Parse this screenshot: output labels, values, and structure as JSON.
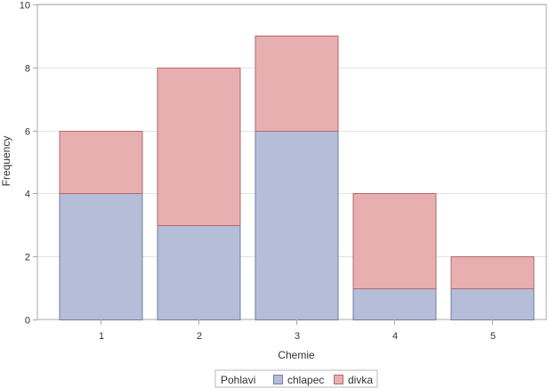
{
  "chart_data": {
    "type": "bar",
    "stacked": true,
    "categories": [
      "1",
      "2",
      "3",
      "4",
      "5"
    ],
    "series": [
      {
        "name": "chlapec",
        "values": [
          4,
          3,
          6,
          1,
          1
        ],
        "color": "#b5bdd8"
      },
      {
        "name": "divka",
        "values": [
          2,
          5,
          3,
          3,
          1
        ],
        "color": "#e8afb0"
      }
    ],
    "xlabel": "Chemie",
    "ylabel": "Frequency",
    "ylim": [
      0,
      10
    ],
    "yticks": [
      0,
      2,
      4,
      6,
      8,
      10
    ],
    "grid": true,
    "legend": {
      "title": "Pohlavi",
      "placement": "bottom-center"
    },
    "colors": {
      "bar_outline_chlapec": "#6f7fa6",
      "bar_outline_divka": "#b06a6e",
      "gridline": "#e3e3e3",
      "frame": "#a9a9a9",
      "text": "#333333"
    }
  }
}
